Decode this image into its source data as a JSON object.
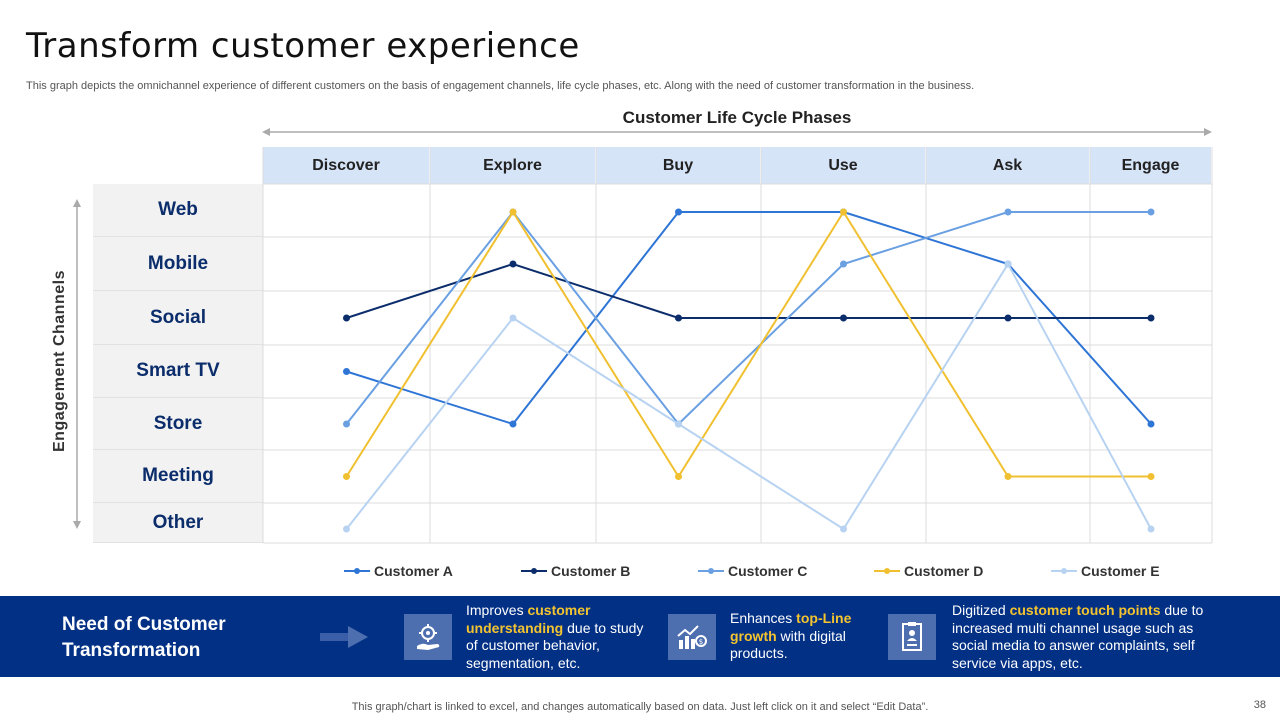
{
  "title": "Transform customer experience",
  "subtitle": "This graph depicts the omnichannel experience of different customers on the basis of engagement channels, life cycle phases, etc. Along with the need of customer transformation in the business.",
  "chart_data": {
    "type": "line",
    "xlabel": "Customer Life Cycle Phases",
    "ylabel": "Engagement Channels",
    "categories": [
      "Discover",
      "Explore",
      "Buy",
      "Use",
      "Ask",
      "Engage"
    ],
    "channels": [
      "Web",
      "Mobile",
      "Social",
      "Smart TV",
      "Store",
      "Meeting",
      "Other"
    ],
    "grid": true,
    "legend_position": "bottom",
    "series": [
      {
        "name": "Customer A",
        "color": "#2e75d6",
        "values": [
          "Smart TV",
          "Store",
          "Web",
          "Web",
          "Mobile",
          "Store"
        ]
      },
      {
        "name": "Customer B",
        "color": "#0b2d6b",
        "values": [
          "Social",
          "Mobile",
          "Social",
          "Social",
          "Social",
          "Social"
        ]
      },
      {
        "name": "Customer C",
        "color": "#6aa0e2",
        "values": [
          "Store",
          "Web",
          "Store",
          "Mobile",
          "Web",
          "Web"
        ]
      },
      {
        "name": "Customer D",
        "color": "#f0c030",
        "values": [
          "Meeting",
          "Web",
          "Meeting",
          "Web",
          "Meeting",
          "Meeting"
        ]
      },
      {
        "name": "Customer E",
        "color": "#b8d3f2",
        "values": [
          "Other",
          "Social",
          "Store",
          "Other",
          "Mobile",
          "Other"
        ]
      }
    ]
  },
  "band": {
    "title_line1": "Need of Customer",
    "title_line2": "Transformation",
    "items": [
      {
        "icon": "gear-hand-icon",
        "pre": "Improves ",
        "highlight": "customer understanding",
        "post": " due to study of customer behavior, segmentation, etc."
      },
      {
        "icon": "growth-chart-icon",
        "pre": "Enhances ",
        "highlight": "top-Line growth",
        "post": " with digital products."
      },
      {
        "icon": "id-badge-icon",
        "pre": "Digitized ",
        "highlight": "customer touch points",
        "post": " due to increased multi channel usage such as social media to answer complaints, self service via apps, etc."
      }
    ]
  },
  "footer": "This graph/chart is linked to excel,  and changes automatically based on data. Just left click on it and select “Edit Data”.",
  "page_number": "38"
}
